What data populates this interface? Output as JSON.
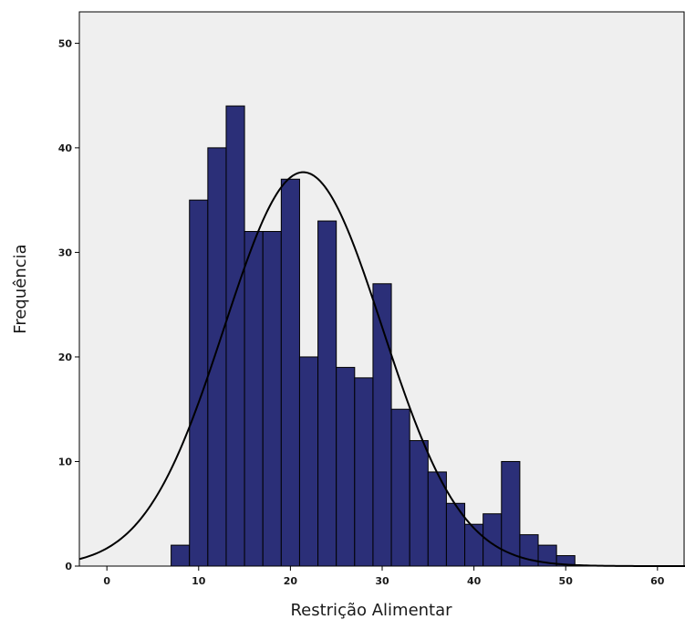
{
  "chart_data": {
    "type": "bar",
    "subtype": "histogram",
    "title": "",
    "xlabel": "Restrição Alimentar",
    "ylabel": "Frequência",
    "xlim": [
      -3,
      63
    ],
    "ylim": [
      0,
      53
    ],
    "x_ticks": [
      0,
      10,
      20,
      30,
      40,
      50,
      60
    ],
    "y_ticks": [
      0,
      10,
      20,
      30,
      40,
      50
    ],
    "bin_width": 2,
    "bins": [
      {
        "start": 7,
        "end": 9,
        "count": 2
      },
      {
        "start": 9,
        "end": 11,
        "count": 35
      },
      {
        "start": 11,
        "end": 13,
        "count": 40
      },
      {
        "start": 13,
        "end": 15,
        "count": 44
      },
      {
        "start": 15,
        "end": 17,
        "count": 32
      },
      {
        "start": 17,
        "end": 19,
        "count": 32
      },
      {
        "start": 19,
        "end": 21,
        "count": 37
      },
      {
        "start": 21,
        "end": 23,
        "count": 20
      },
      {
        "start": 23,
        "end": 25,
        "count": 33
      },
      {
        "start": 25,
        "end": 27,
        "count": 19
      },
      {
        "start": 27,
        "end": 29,
        "count": 18
      },
      {
        "start": 29,
        "end": 31,
        "count": 27
      },
      {
        "start": 31,
        "end": 33,
        "count": 15
      },
      {
        "start": 33,
        "end": 35,
        "count": 12
      },
      {
        "start": 35,
        "end": 37,
        "count": 9
      },
      {
        "start": 37,
        "end": 39,
        "count": 6
      },
      {
        "start": 39,
        "end": 41,
        "count": 4
      },
      {
        "start": 41,
        "end": 43,
        "count": 5
      },
      {
        "start": 43,
        "end": 45,
        "count": 10
      },
      {
        "start": 45,
        "end": 47,
        "count": 3
      },
      {
        "start": 47,
        "end": 49,
        "count": 2
      },
      {
        "start": 49,
        "end": 51,
        "count": 1
      }
    ],
    "normal_curve": {
      "mean": 21.4,
      "sd": 8.6,
      "n": 406
    },
    "colors": {
      "bar": "#2b2f78",
      "plot_background": "#efefef",
      "curve": "#000000"
    },
    "grid": false,
    "legend": "none"
  }
}
